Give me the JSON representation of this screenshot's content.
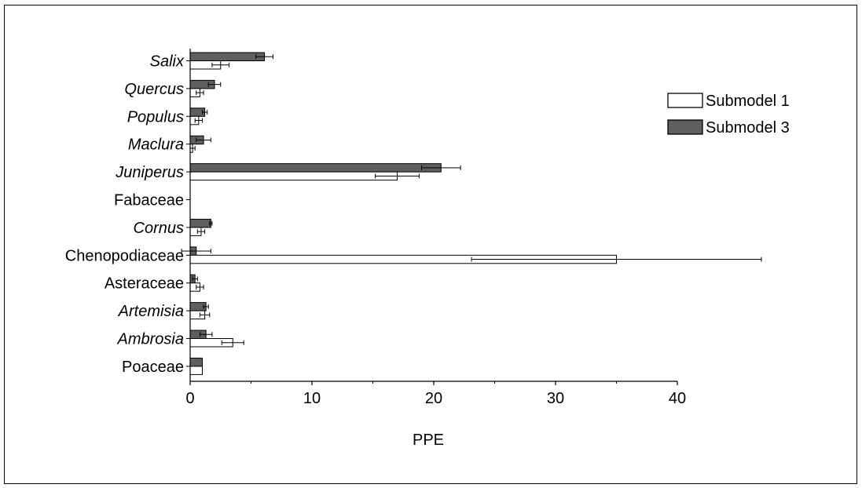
{
  "chart_data": {
    "type": "bar",
    "orientation": "horizontal",
    "categories": [
      "Salix",
      "Quercus",
      "Populus",
      "Maclura",
      "Juniperus",
      "Fabaceae",
      "Cornus",
      "Chenopodiaceae",
      "Asteraceae",
      "Artemisia",
      "Ambrosia",
      "Poaceae"
    ],
    "italic_categories": [
      "Salix",
      "Quercus",
      "Populus",
      "Maclura",
      "Juniperus",
      "Cornus",
      "Artemisia",
      "Ambrosia"
    ],
    "series": [
      {
        "name": "Submodel 1",
        "color": "#ffffff",
        "values": [
          2.5,
          0.8,
          0.7,
          0.2,
          17.0,
          0,
          0.9,
          35.0,
          0.8,
          1.2,
          3.5,
          1.0
        ],
        "errors": [
          0.7,
          0.3,
          0.3,
          0.2,
          1.8,
          0,
          0.3,
          11.9,
          0.3,
          0.4,
          0.9,
          0
        ]
      },
      {
        "name": "Submodel 3",
        "color": "#5f5f5f",
        "values": [
          6.1,
          2.0,
          1.2,
          1.1,
          20.6,
          0,
          1.7,
          0.5,
          0.4,
          1.3,
          1.3,
          1.0
        ],
        "errors": [
          0.7,
          0.5,
          0.2,
          0.6,
          1.6,
          0,
          0.1,
          1.2,
          0.2,
          0.2,
          0.5,
          0
        ]
      }
    ],
    "xlabel": "PPE",
    "ylabel": "",
    "xlim": [
      0,
      40
    ],
    "xticks": [
      "0",
      "10",
      "20",
      "30",
      "40"
    ],
    "grid": false,
    "legend_position": "top-right"
  }
}
